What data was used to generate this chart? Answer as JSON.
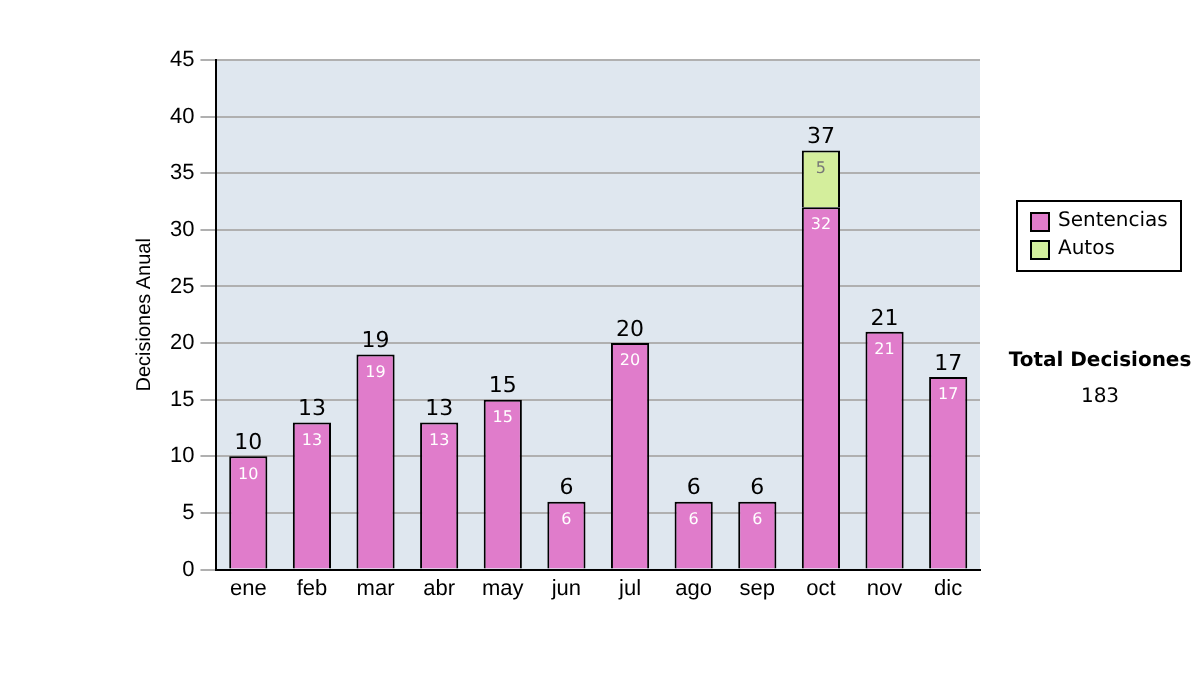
{
  "chart_data": {
    "type": "bar",
    "stacked": true,
    "ylabel": "Decisiones Anual",
    "categories": [
      "ene",
      "feb",
      "mar",
      "abr",
      "may",
      "jun",
      "jul",
      "ago",
      "sep",
      "oct",
      "nov",
      "dic"
    ],
    "series": [
      {
        "name": "Sentencias",
        "color": "#e07ccb",
        "values": [
          10,
          13,
          19,
          13,
          15,
          6,
          20,
          6,
          6,
          32,
          21,
          17
        ]
      },
      {
        "name": "Autos",
        "color": "#d4ee9c",
        "values": [
          null,
          null,
          null,
          null,
          null,
          null,
          null,
          null,
          null,
          5,
          null,
          null
        ]
      }
    ],
    "totals": [
      "10",
      "13",
      "19",
      "13",
      "15",
      "6",
      "20",
      "6",
      "6",
      "37",
      "21",
      "17"
    ],
    "data_labels": true,
    "ylim": [
      0,
      45
    ],
    "yticks": [
      0,
      5,
      10,
      15,
      20,
      25,
      30,
      35,
      40,
      45
    ],
    "grid": "y",
    "legend": "right",
    "annotations": [
      "Total Decisiones",
      "183"
    ]
  }
}
